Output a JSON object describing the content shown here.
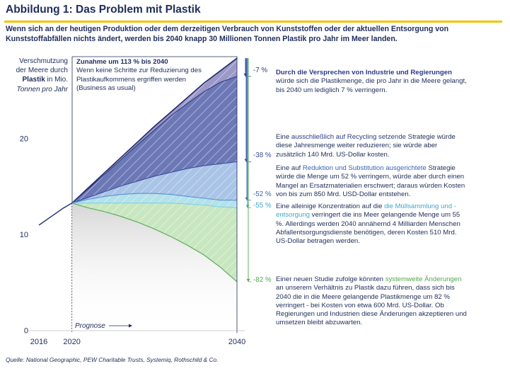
{
  "title": "Abbildung 1: Das Problem mit Plastik",
  "subtitle": "Wenn sich an der heutigen Produktion oder dem derzeitigen Verbrauch von Kunststoffen oder der aktuellen Entsorgung von Kunststoffabfällen nichts ändert, werden bis 2040 knapp 30 Millionen Tonnen Plastik pro Jahr im Meer landen.",
  "ylabel": {
    "line1": "Verschmutzung",
    "line2": "der Meere durch",
    "line3_bold": "Plastik",
    "line3_rest": " in Mio.",
    "line4": "Tonnen pro Jahr"
  },
  "prognose_label": "Prognose",
  "source": "Quelle: National Geographic, PEW Charitable Trusts, Systemiq, Rothschild & Co.",
  "baseline_box": {
    "head": "Zunahme um 113 % bis 2040",
    "body": "Wenn keine Schritte zur Reduzierung des Plastikaufkommens ergriffen werden (Business as usual)"
  },
  "annotations": {
    "a1_hl": "Durch die Versprechen von Industrie und Regierungen",
    "a1_rest": " würde sich die Plastikmenge, die pro Jahr in die Meere gelangt, bis 2040 um lediglich 7 % verringern.",
    "a2_pre": "Eine ",
    "a2_hl": "ausschließlich auf Recycling setzende",
    "a2_rest": " Strategie würde diese Jahresmenge weiter reduzieren; sie würde aber zusätzlich 140 Mrd. US-Dollar kosten.",
    "a3_pre": "Eine auf ",
    "a3_hl": "Reduktion und Substitution ausgerichtete",
    "a3_rest": " Strategie würde die Menge um 52 % verringern, würde aber durch einen Mangel an Ersatzmaterialien erschwert; daraus würden Kosten von bis zum 850 Mrd. USD-Dollar entstehen.",
    "a4_pre": "Eine alleinige Konzentration auf die ",
    "a4_hl": "die Müllsammlung und -entsorgung",
    "a4_rest": " verringert die ins Meer gelangende Menge um 55 %. Allerdings werden 2040 annähernd 4 Milliarden Menschen Abfallentsorgungsdienste benötigen, deren Kosten 510 Mrd. US-Dollar betragen werden.",
    "a5_pre": "Einer neuen Studie zufolge könnten ",
    "a5_hl": "systemweite Änderungen",
    "a5_rest": " an unserem Verhältnis zu Plastik dazu führen, dass sich bis 2040 die in die Meere gelangende Plastikmenge um 82 % verringert - bei Kosten von etwa 600 Mrd. US-Dollar. Ob Regierungen und Industrien diese Änderungen akzeptieren und umsetzen bleibt abzuwarten."
  },
  "colors": {
    "title": "#1f2d5a",
    "rule": "#f2c400",
    "baseline_fill": "#9c98c8",
    "pledges_fill": "#6c78b6",
    "recycling_fill": "#a9c4e6",
    "reduce_fill": "#b4e1ea",
    "collect_fill": "#c8e7c0",
    "systemic_line": "#56a853",
    "history_grey": "#e4e4e4"
  },
  "chart_data": {
    "type": "area",
    "title": "Abbildung 1: Das Problem mit Plastik",
    "ylabel": "Verschmutzung der Meere durch Plastik in Mio. Tonnen pro Jahr",
    "x_ticks": [
      "2016",
      "2020",
      "2040"
    ],
    "y_ticks": [
      "0",
      "10",
      "20"
    ],
    "ylim": [
      0,
      29
    ],
    "xlim": [
      2016,
      2040
    ],
    "history": {
      "x": [
        2016,
        2017,
        2018,
        2019,
        2020
      ],
      "y": [
        11.0,
        11.6,
        12.2,
        12.8,
        13.3
      ]
    },
    "x": [
      2020,
      2022,
      2024,
      2026,
      2028,
      2030,
      2032,
      2034,
      2036,
      2038,
      2040
    ],
    "series": [
      {
        "name": "Business as usual (+113 %)",
        "pct_label": "",
        "values": [
          13.3,
          14.9,
          16.5,
          18.1,
          19.7,
          21.3,
          22.8,
          24.3,
          25.8,
          27.1,
          28.4
        ]
      },
      {
        "name": "Versprechen von Industrie und Regierungen",
        "pct_label": "-7 %",
        "values": [
          13.3,
          14.8,
          16.3,
          17.9,
          19.4,
          20.9,
          22.4,
          23.7,
          24.9,
          25.9,
          26.5
        ]
      },
      {
        "name": "Recycling",
        "pct_label": "-38 %",
        "values": [
          13.3,
          13.9,
          14.5,
          15.1,
          15.6,
          16.1,
          16.5,
          16.9,
          17.2,
          17.4,
          17.6
        ]
      },
      {
        "name": "Reduktion und Substitution",
        "pct_label": "-52 %",
        "values": [
          13.3,
          13.7,
          14.0,
          14.2,
          14.3,
          14.3,
          14.2,
          14.0,
          13.8,
          13.6,
          13.6
        ]
      },
      {
        "name": "Müllsammlung und -entsorgung",
        "pct_label": "-55 %",
        "values": [
          13.3,
          13.3,
          13.3,
          13.3,
          13.3,
          13.3,
          13.3,
          13.2,
          13.1,
          12.9,
          12.8
        ]
      },
      {
        "name": "Systemweite Änderungen",
        "pct_label": "-82 %",
        "values": [
          13.3,
          12.8,
          12.4,
          11.9,
          11.3,
          10.6,
          9.8,
          8.9,
          7.9,
          6.6,
          5.1
        ]
      }
    ]
  }
}
